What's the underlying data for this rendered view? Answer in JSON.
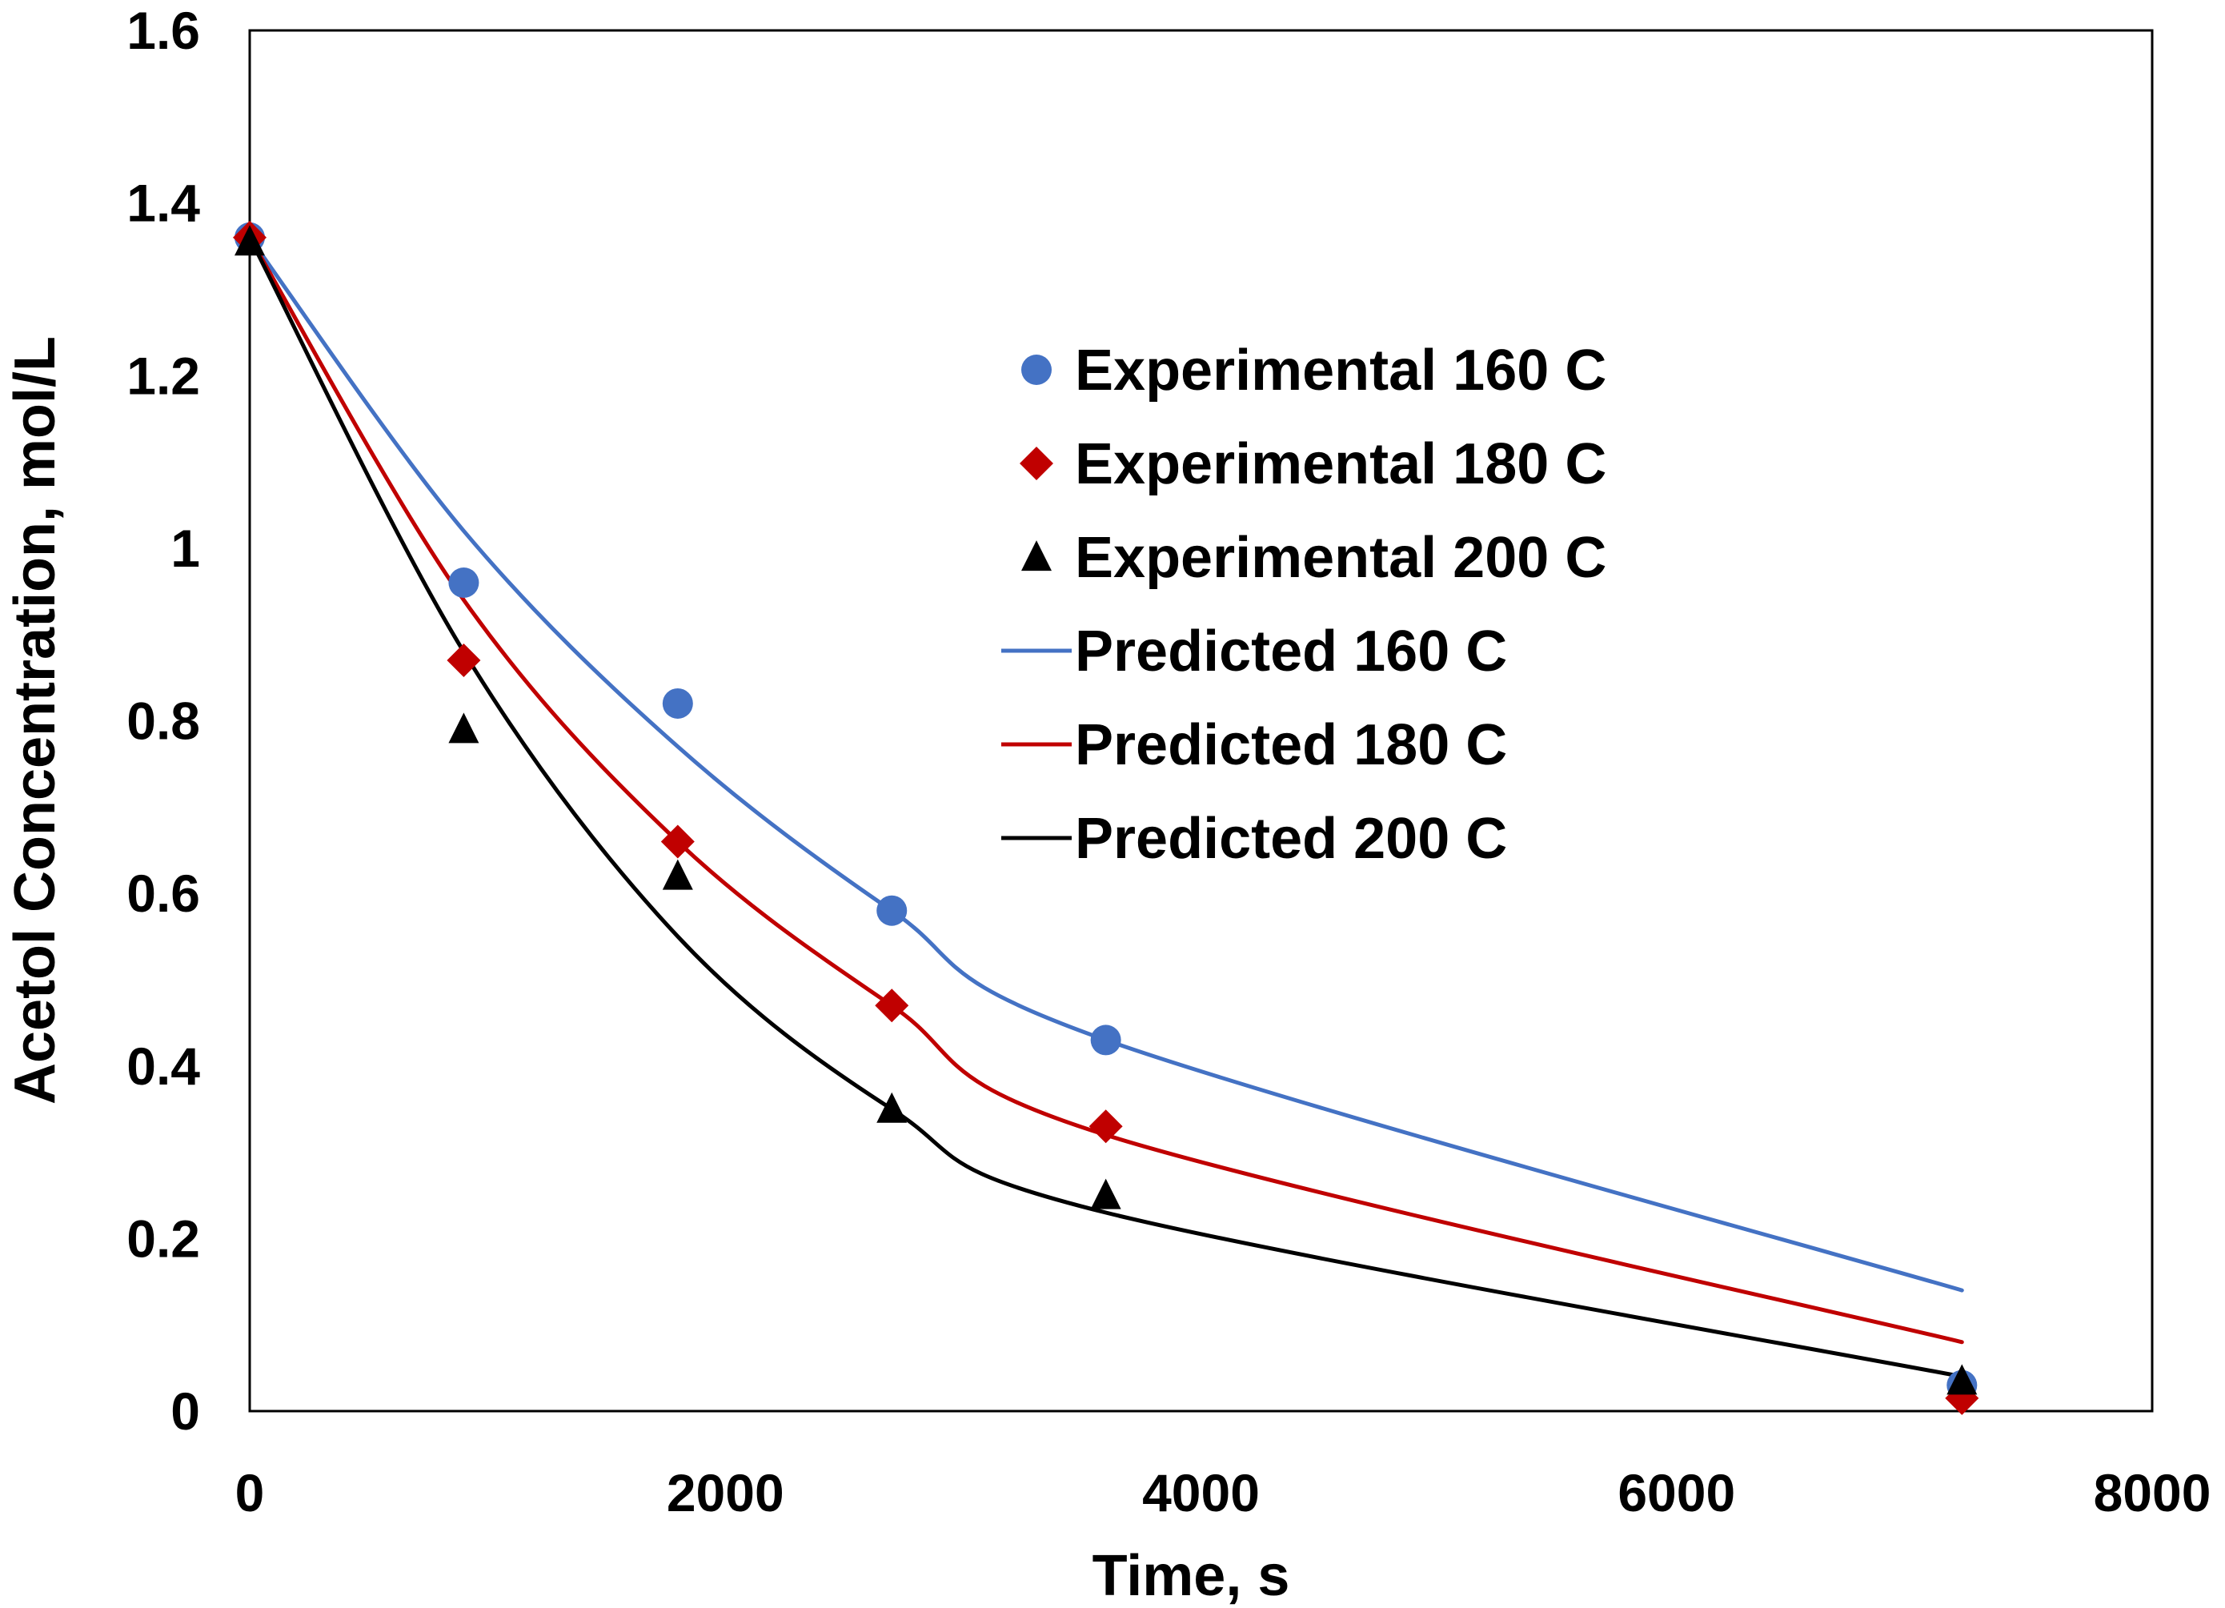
{
  "chart_data": {
    "type": "scatter",
    "xlabel": "Time, s",
    "ylabel": "Acetol Concentration, mol/L",
    "xlim": [
      0,
      8000
    ],
    "ylim": [
      0,
      1.6
    ],
    "xticks": [
      "0",
      "2000",
      "4000",
      "6000",
      "8000"
    ],
    "yticks": [
      "0",
      "0.2",
      "0.4",
      "0.6",
      "0.8",
      "1",
      "1.2",
      "1.4",
      "1.6"
    ],
    "grid": false,
    "legend_position": "center-right",
    "colors": {
      "blue": "#4472C4",
      "red": "#C00000",
      "black": "#000000"
    },
    "series": [
      {
        "name": "Experimental 160 C",
        "kind": "points",
        "marker": "circle",
        "color": "#4472C4",
        "x": [
          0,
          900,
          1800,
          2700,
          3600,
          7200
        ],
        "y": [
          1.36,
          0.96,
          0.82,
          0.58,
          0.43,
          0.03
        ]
      },
      {
        "name": "Experimental 180 C",
        "kind": "points",
        "marker": "diamond",
        "color": "#C00000",
        "x": [
          0,
          900,
          1800,
          2700,
          3600,
          7200
        ],
        "y": [
          1.36,
          0.87,
          0.66,
          0.47,
          0.33,
          0.015
        ]
      },
      {
        "name": "Experimental 200 C",
        "kind": "points",
        "marker": "triangle",
        "color": "#000000",
        "x": [
          0,
          900,
          1800,
          2700,
          3600,
          7200
        ],
        "y": [
          1.355,
          0.79,
          0.62,
          0.35,
          0.25,
          0.035
        ]
      },
      {
        "name": "Predicted 160 C",
        "kind": "line",
        "color": "#4472C4",
        "x": [
          0,
          900,
          1800,
          2700,
          3600,
          7200
        ],
        "y": [
          1.36,
          1.02,
          0.77,
          0.58,
          0.43,
          0.14
        ]
      },
      {
        "name": "Predicted 180 C",
        "kind": "line",
        "color": "#C00000",
        "x": [
          0,
          900,
          1800,
          2700,
          3600,
          7200
        ],
        "y": [
          1.36,
          0.94,
          0.66,
          0.47,
          0.32,
          0.08
        ]
      },
      {
        "name": "Predicted 200 C",
        "kind": "line",
        "color": "#000000",
        "x": [
          0,
          900,
          1800,
          2700,
          3600,
          7200
        ],
        "y": [
          1.36,
          0.88,
          0.55,
          0.35,
          0.23,
          0.04
        ]
      }
    ]
  }
}
